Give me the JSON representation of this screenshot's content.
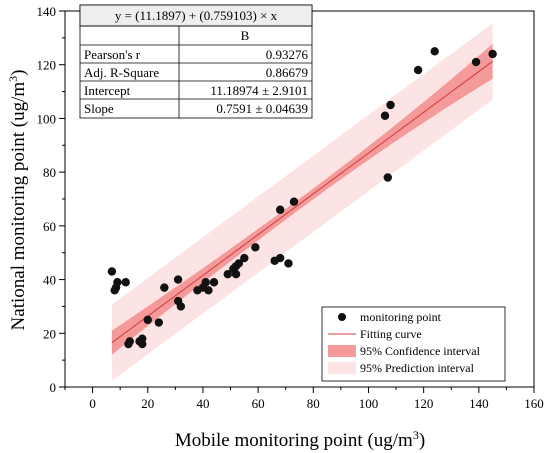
{
  "chart_data": {
    "type": "scatter",
    "xlabel": "Mobile monitoring point (ug/m",
    "xlabel_sup": "3",
    "xlabel_end": ")",
    "ylabel": "National monitoring point (ug/m",
    "ylabel_sup": "3",
    "ylabel_end": ")",
    "xlim": [
      -10,
      160
    ],
    "ylim": [
      0,
      140
    ],
    "x_ticks": [
      0,
      20,
      40,
      60,
      80,
      100,
      120,
      140,
      160
    ],
    "y_ticks": [
      0,
      20,
      40,
      60,
      80,
      100,
      120,
      140
    ],
    "fit": {
      "intercept": 11.18974,
      "slope": 0.7591,
      "x_range": [
        7,
        145
      ]
    },
    "confidence_band_halfwidth": {
      "at_low_x": 4.5,
      "at_center": 2.0,
      "at_high_x": 6.5
    },
    "prediction_band_halfwidth": 14.2,
    "colors": {
      "points": "#111111",
      "fit_line": "#d43a3a",
      "confidence": "#f49a9a",
      "prediction": "#fde4e4"
    },
    "points": [
      [
        7,
        43
      ],
      [
        8,
        36
      ],
      [
        8.5,
        37
      ],
      [
        9,
        39
      ],
      [
        12,
        39
      ],
      [
        13,
        16
      ],
      [
        13.5,
        17
      ],
      [
        17,
        17
      ],
      [
        18,
        18
      ],
      [
        18,
        16
      ],
      [
        20,
        25
      ],
      [
        24,
        24
      ],
      [
        26,
        37
      ],
      [
        31,
        40
      ],
      [
        31,
        32
      ],
      [
        32,
        30
      ],
      [
        38,
        36
      ],
      [
        40,
        37
      ],
      [
        41,
        39
      ],
      [
        42,
        36
      ],
      [
        44,
        39
      ],
      [
        49,
        42
      ],
      [
        51,
        44
      ],
      [
        52,
        42
      ],
      [
        52,
        45
      ],
      [
        53,
        46
      ],
      [
        55,
        48
      ],
      [
        59,
        52
      ],
      [
        66,
        47
      ],
      [
        68,
        48
      ],
      [
        68,
        66
      ],
      [
        71,
        46
      ],
      [
        73,
        69
      ],
      [
        106,
        101
      ],
      [
        107,
        78
      ],
      [
        108,
        105
      ],
      [
        118,
        118
      ],
      [
        124,
        125
      ],
      [
        139,
        121
      ],
      [
        145,
        124
      ]
    ],
    "table": {
      "equation": "y = (11.1897) + (0.759103) × x",
      "column_header": "B",
      "rows": [
        {
          "label": "Pearson's r",
          "value": "0.93276"
        },
        {
          "label": "Adj. R-Square",
          "value": "0.86679"
        },
        {
          "label": "Intercept",
          "value": "11.18974 ± 2.9101"
        },
        {
          "label": "Slope",
          "value": "0.7591 ± 0.04639"
        }
      ]
    },
    "legend": {
      "position": "bottom-right",
      "items": [
        {
          "label": "monitoring point"
        },
        {
          "label": "Fitting curve"
        },
        {
          "label": "95% Confidence interval"
        },
        {
          "label": "95% Prediction interval"
        }
      ]
    }
  }
}
